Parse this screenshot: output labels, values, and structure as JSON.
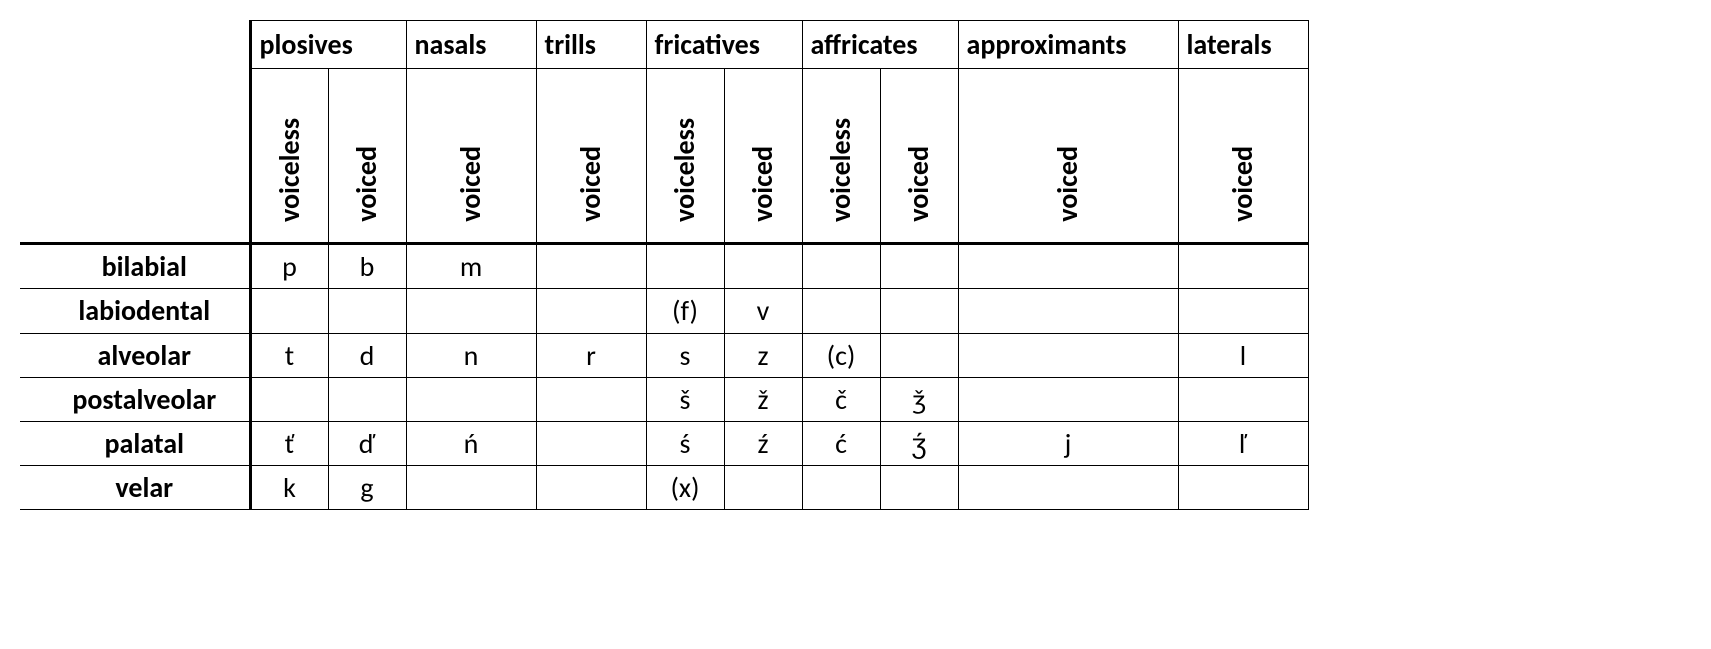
{
  "type": "table",
  "colors": {
    "text": "#000000",
    "background": "#ffffff",
    "border": "#000000"
  },
  "typography": {
    "fontsize_header": 28,
    "fontsize_cell": 28,
    "font_family": "Calibri"
  },
  "columns": {
    "manner": [
      "plosives",
      "nasals",
      "trills",
      "fricatives",
      "affricates",
      "approximants",
      "laterals"
    ],
    "voicing": [
      "voiceless",
      "voiced",
      "voiced",
      "voiced",
      "voiceless",
      "voiced",
      "voiceless",
      "voiced",
      "voiced",
      "voiced"
    ]
  },
  "rows": [
    {
      "label": "bilabial",
      "cells": [
        "p",
        "b",
        "m",
        "",
        "",
        "",
        "",
        "",
        "",
        ""
      ]
    },
    {
      "label": "labiodental",
      "cells": [
        "",
        "",
        "",
        "",
        "(f)",
        "v",
        "",
        "",
        "",
        ""
      ]
    },
    {
      "label": "alveolar",
      "cells": [
        "t",
        "d",
        "n",
        "r",
        "s",
        "z",
        "(c)",
        "",
        "",
        "l"
      ]
    },
    {
      "label": "postalveolar",
      "cells": [
        "",
        "",
        "",
        "",
        "š",
        "ž",
        "č",
        "ǯ",
        "",
        ""
      ]
    },
    {
      "label": "palatal",
      "cells": [
        "ť",
        "ď",
        "ń",
        "",
        "ś",
        "ź",
        "ć",
        "ʒ́",
        "j",
        "ľ"
      ]
    },
    {
      "label": "velar",
      "cells": [
        "k",
        "g",
        "",
        "",
        "(x)",
        "",
        "",
        "",
        "",
        ""
      ]
    }
  ],
  "column_groups": [
    2,
    1,
    1,
    2,
    2,
    1,
    1
  ],
  "widths": {
    "row_header": 230,
    "default": 78,
    "nasals": 130,
    "trills": 110,
    "approximants": 220,
    "laterals": 130
  }
}
